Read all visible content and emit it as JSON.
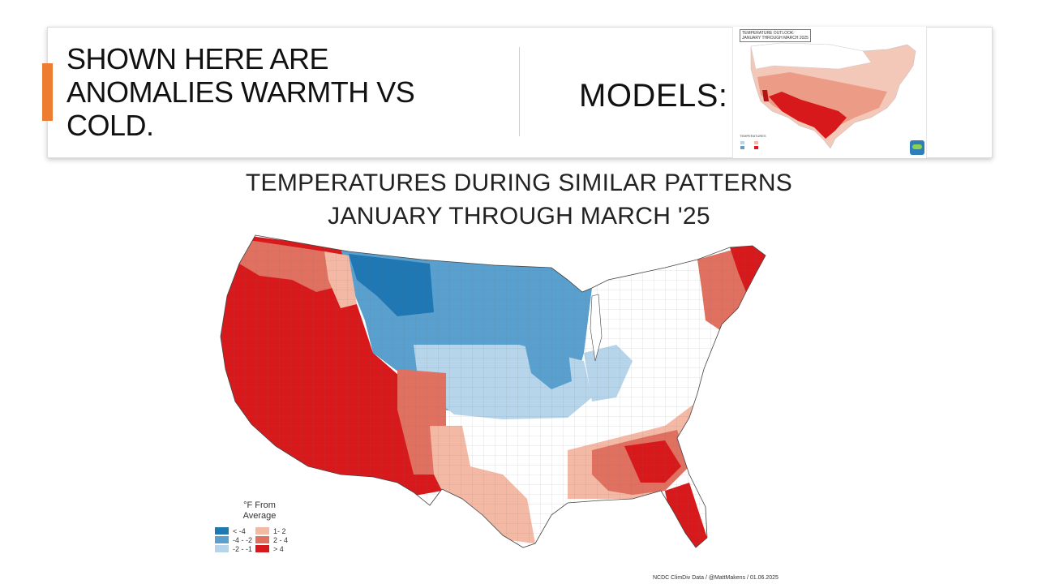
{
  "slide": {
    "heading_lines": [
      "SHOWN HERE ARE",
      "ANOMALIES WARMTH VS",
      "COLD."
    ],
    "models_label": "MODELS:"
  },
  "thumbnail": {
    "title_line1": "TEMPERATURE OUTLOOK:",
    "title_line2": "JANUARY THROUGH MARCH 2025",
    "legend_title": "TEMPERATURES"
  },
  "map": {
    "title_line1": "TEMPERATURES DURING SIMILAR PATTERNS",
    "title_line2": "JANUARY THROUGH MARCH '25",
    "legend": {
      "title_line1": "°F From",
      "title_line2": "Average",
      "cold": [
        {
          "label": "< -4",
          "color": "#1f78b4"
        },
        {
          "label": "-4 - -2",
          "color": "#5aa0cf"
        },
        {
          "label": "-2 - -1",
          "color": "#b6d5ea"
        }
      ],
      "warm": [
        {
          "label": "1- 2",
          "color": "#f4b9a4"
        },
        {
          "label": "2 - 4",
          "color": "#e07060"
        },
        {
          "label": "> 4",
          "color": "#d7191c"
        }
      ]
    },
    "credit": "NCDC ClimDiv Data / @MattMakens / 01.06.2025"
  },
  "colors": {
    "accent": "#ed7d31",
    "deep_warm": "#d7191c",
    "warm": "#e07060",
    "light_warm": "#f4b9a4",
    "neutral": "#ffffff",
    "light_cold": "#b6d5ea",
    "cold": "#5aa0cf",
    "deep_cold": "#1f78b4"
  }
}
